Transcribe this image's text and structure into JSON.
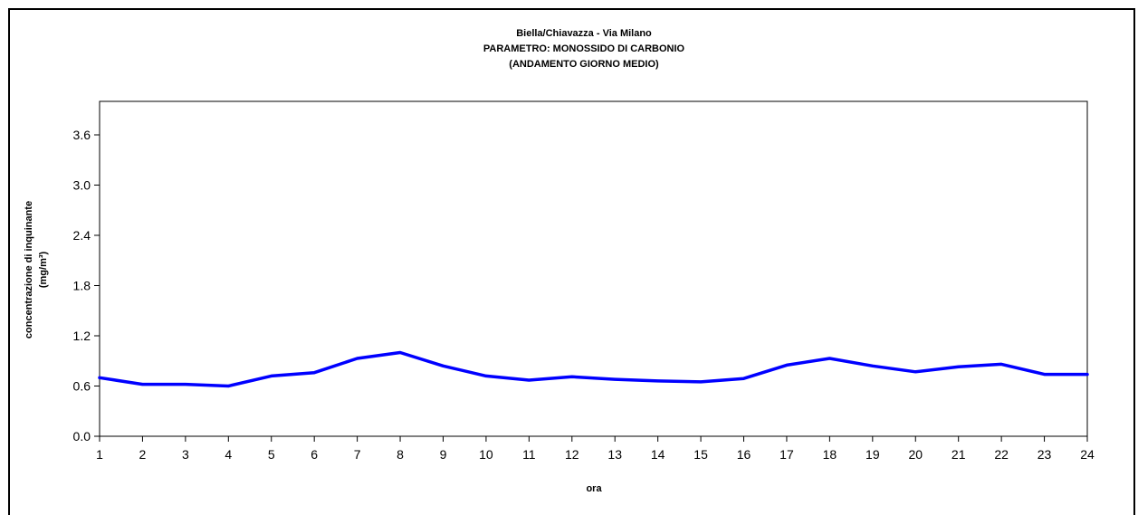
{
  "chart_data": {
    "type": "line",
    "title_lines": [
      "Biella/Chiavazza - Via Milano",
      "PARAMETRO: MONOSSIDO DI CARBONIO",
      "(ANDAMENTO GIORNO MEDIO)"
    ],
    "xlabel": "ora",
    "ylabel_lines": [
      "concentrazione di inquinante",
      "(mg/m³)"
    ],
    "x": [
      1,
      2,
      3,
      4,
      5,
      6,
      7,
      8,
      9,
      10,
      11,
      12,
      13,
      14,
      15,
      16,
      17,
      18,
      19,
      20,
      21,
      22,
      23,
      24
    ],
    "series": [
      {
        "values": [
          0.7,
          0.62,
          0.62,
          0.6,
          0.72,
          0.76,
          0.93,
          1.0,
          0.84,
          0.72,
          0.67,
          0.71,
          0.68,
          0.66,
          0.65,
          0.69,
          0.85,
          0.93,
          0.84,
          0.77,
          0.83,
          0.86,
          0.74,
          0.74
        ],
        "color": "#0000ff"
      }
    ],
    "ylim": [
      0,
      4.0
    ],
    "yticks": [
      0.0,
      0.6,
      1.2,
      1.8,
      2.4,
      3.0,
      3.6
    ],
    "ytick_labels": [
      "0.0",
      "0.6",
      "1.2",
      "1.8",
      "2.4",
      "3.0",
      "3.6"
    ],
    "xtick_labels": [
      "1",
      "2",
      "3",
      "4",
      "5",
      "6",
      "7",
      "8",
      "9",
      "10",
      "11",
      "12",
      "13",
      "14",
      "15",
      "16",
      "17",
      "18",
      "19",
      "20",
      "21",
      "22",
      "23",
      "24"
    ],
    "grid": false,
    "legend": "none"
  }
}
